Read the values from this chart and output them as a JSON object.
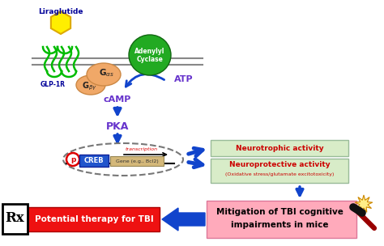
{
  "bg_color": "#ffffff",
  "glp1r_color": "#00bb00",
  "liraglutide_color": "#ffee00",
  "adenylyl_color": "#22aa22",
  "gas_color": "#f0a868",
  "arrow_color": "#1144cc",
  "neuro_box_color": "#d8ecc8",
  "neuro_text_color": "#cc0000",
  "mitigation_box_color": "#ffaabb",
  "potential_box_color": "#ee1111",
  "creb_box_color": "#2255cc",
  "gene_box_color": "#d4b87a",
  "transcription_color": "#dd0000",
  "p_color": "#dd0000",
  "purple_color": "#6633cc",
  "membrane_color": "#888888",
  "camp_label": "cAMP",
  "atp_label": "ATP",
  "pka_label": "PKA",
  "glp1r_label": "GLP-1R",
  "neurotrophic_text": "Neurotrophic activity",
  "neuroprotective_text": "Neuroprotective activity",
  "neuroprotective_sub": "(Oxidative stress/glutamate excitotoxicity)",
  "mitigation_text1": "Mitigation of TBI cognitive",
  "mitigation_text2": "impairments in mice",
  "potential_text": "Potential therapy for TBI"
}
